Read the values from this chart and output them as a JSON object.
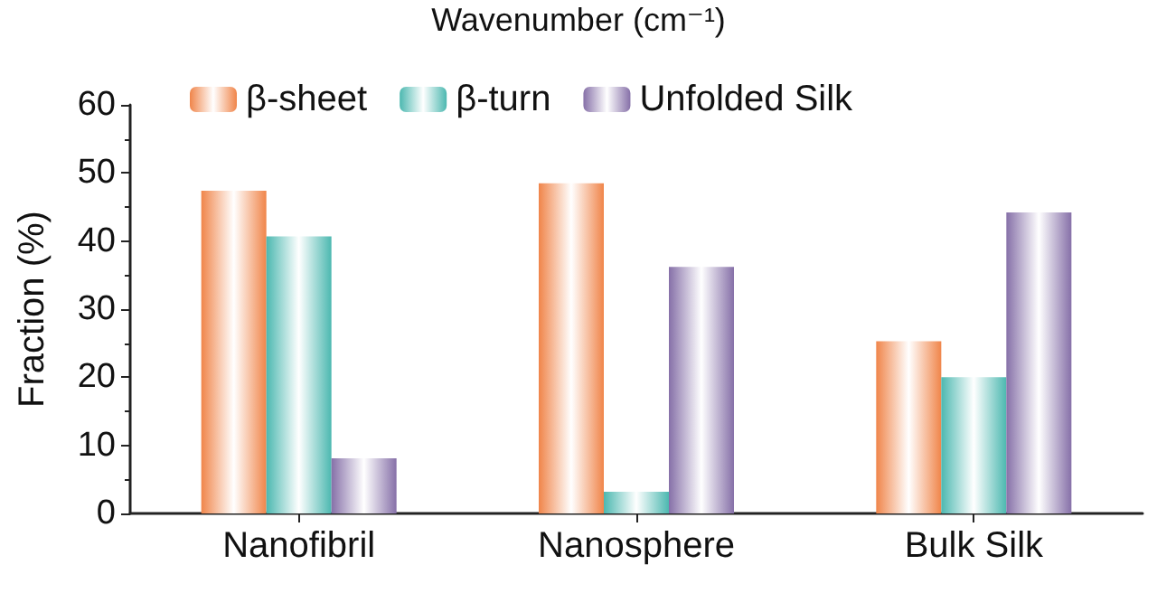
{
  "chart_data": {
    "type": "bar",
    "ylabel": "Fraction (%)",
    "annotations": [
      "Wavenumber (cm⁻¹)"
    ],
    "categories": [
      "Nanofibril",
      "Nanosphere",
      "Bulk Silk"
    ],
    "series": [
      {
        "name": "β-sheet",
        "color": "#f0854a",
        "values": [
          47.4,
          48.5,
          25.3
        ]
      },
      {
        "name": "β-turn",
        "color": "#4cb8b0",
        "values": [
          40.7,
          3.2,
          20
        ]
      },
      {
        "name": "Unfolded Silk",
        "color": "#8670a8",
        "values": [
          8.1,
          36.2,
          44.2
        ]
      }
    ],
    "ylim": [
      0,
      60
    ],
    "yticks": [
      0,
      10,
      20,
      30,
      40,
      50,
      60
    ],
    "grid": false,
    "legend": "top"
  }
}
